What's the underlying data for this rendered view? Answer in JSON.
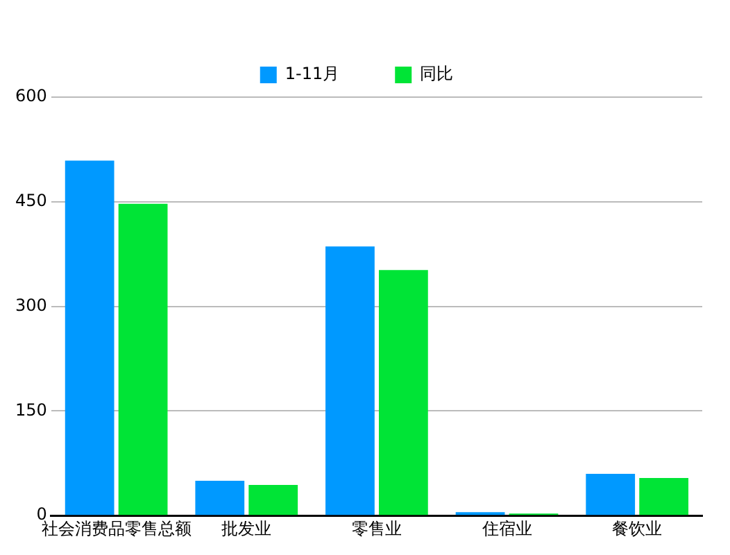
{
  "chart_data": {
    "type": "bar",
    "categories": [
      "社会消费品零售总额",
      "批发业",
      "零售业",
      "住宿业",
      "餐饮业"
    ],
    "series": [
      {
        "name": "1-11月",
        "color": "#0099ff",
        "values": [
          509,
          50,
          386,
          5,
          60
        ]
      },
      {
        "name": "同比",
        "color": "#00e436",
        "values": [
          447,
          44,
          352,
          3,
          54
        ]
      }
    ],
    "ylim": [
      0,
      600
    ],
    "yticks": [
      0,
      150,
      300,
      450,
      600
    ],
    "grid": "y",
    "legend": "top"
  }
}
